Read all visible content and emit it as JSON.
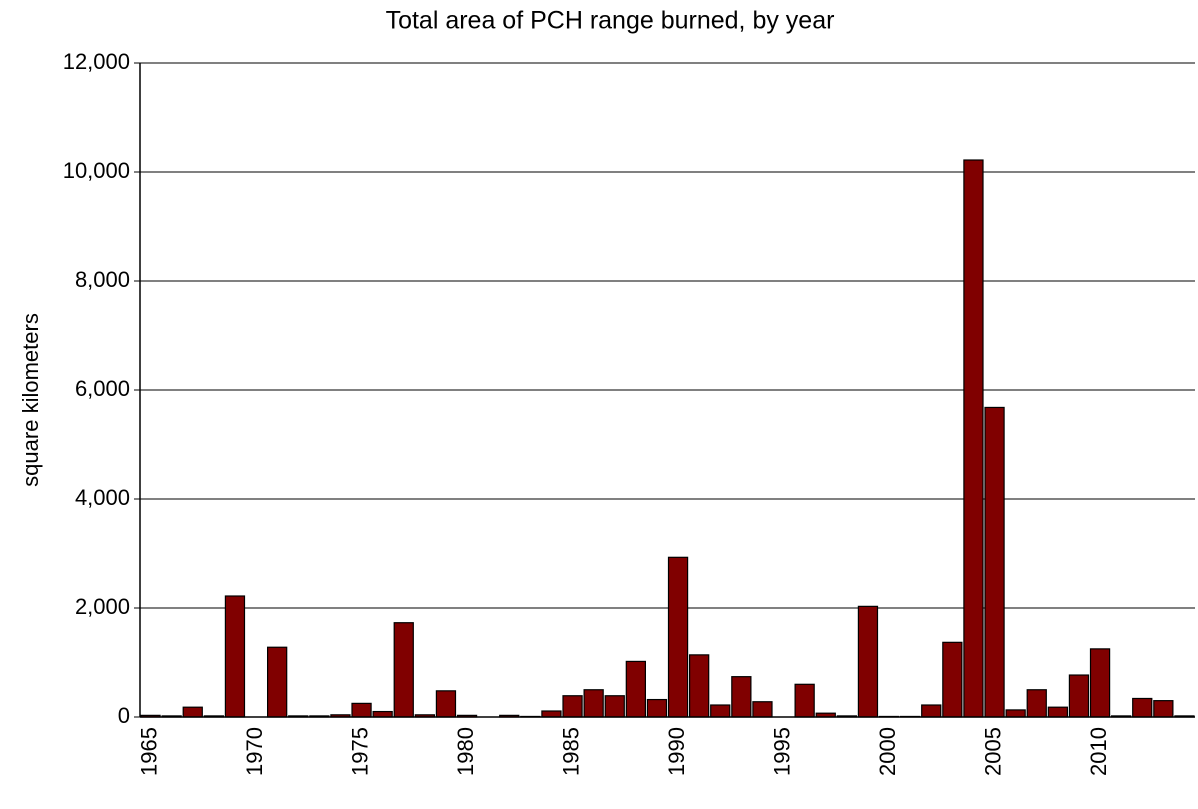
{
  "chart_data": {
    "type": "bar",
    "title": "Total area of PCH range burned, by year",
    "y_label": "square kilometers",
    "categories": [
      "1965",
      null,
      null,
      null,
      null,
      "1970",
      null,
      null,
      null,
      null,
      "1975",
      null,
      null,
      null,
      null,
      "1980",
      null,
      null,
      null,
      null,
      "1985",
      null,
      null,
      null,
      null,
      "1990",
      null,
      null,
      null,
      null,
      "1995",
      null,
      null,
      null,
      null,
      "2000",
      null,
      null,
      null,
      null,
      "2005",
      null,
      null,
      null,
      null,
      "2010",
      null,
      null,
      null,
      null
    ],
    "values": [
      30,
      20,
      180,
      20,
      2220,
      0,
      1280,
      20,
      20,
      40,
      250,
      100,
      1730,
      40,
      480,
      30,
      0,
      30,
      10,
      110,
      390,
      500,
      390,
      1020,
      320,
      2930,
      1140,
      220,
      740,
      280,
      0,
      600,
      70,
      20,
      2030,
      10,
      10,
      220,
      1370,
      10220,
      5680,
      130,
      500,
      180,
      770,
      1250,
      20,
      340,
      300,
      20
    ],
    "color": "#800000",
    "ylim": [
      0,
      12000
    ],
    "yticks": [
      0,
      {
        "value": 2000,
        "label": "2,000"
      },
      {
        "value": 4000,
        "label": "4,000"
      },
      {
        "value": 6000,
        "label": "6,000"
      },
      {
        "value": 8000,
        "label": "8,000"
      },
      {
        "value": 10000,
        "label": "10,000"
      },
      {
        "value": 12000,
        "label": "12,000"
      }
    ],
    "grid": true
  }
}
